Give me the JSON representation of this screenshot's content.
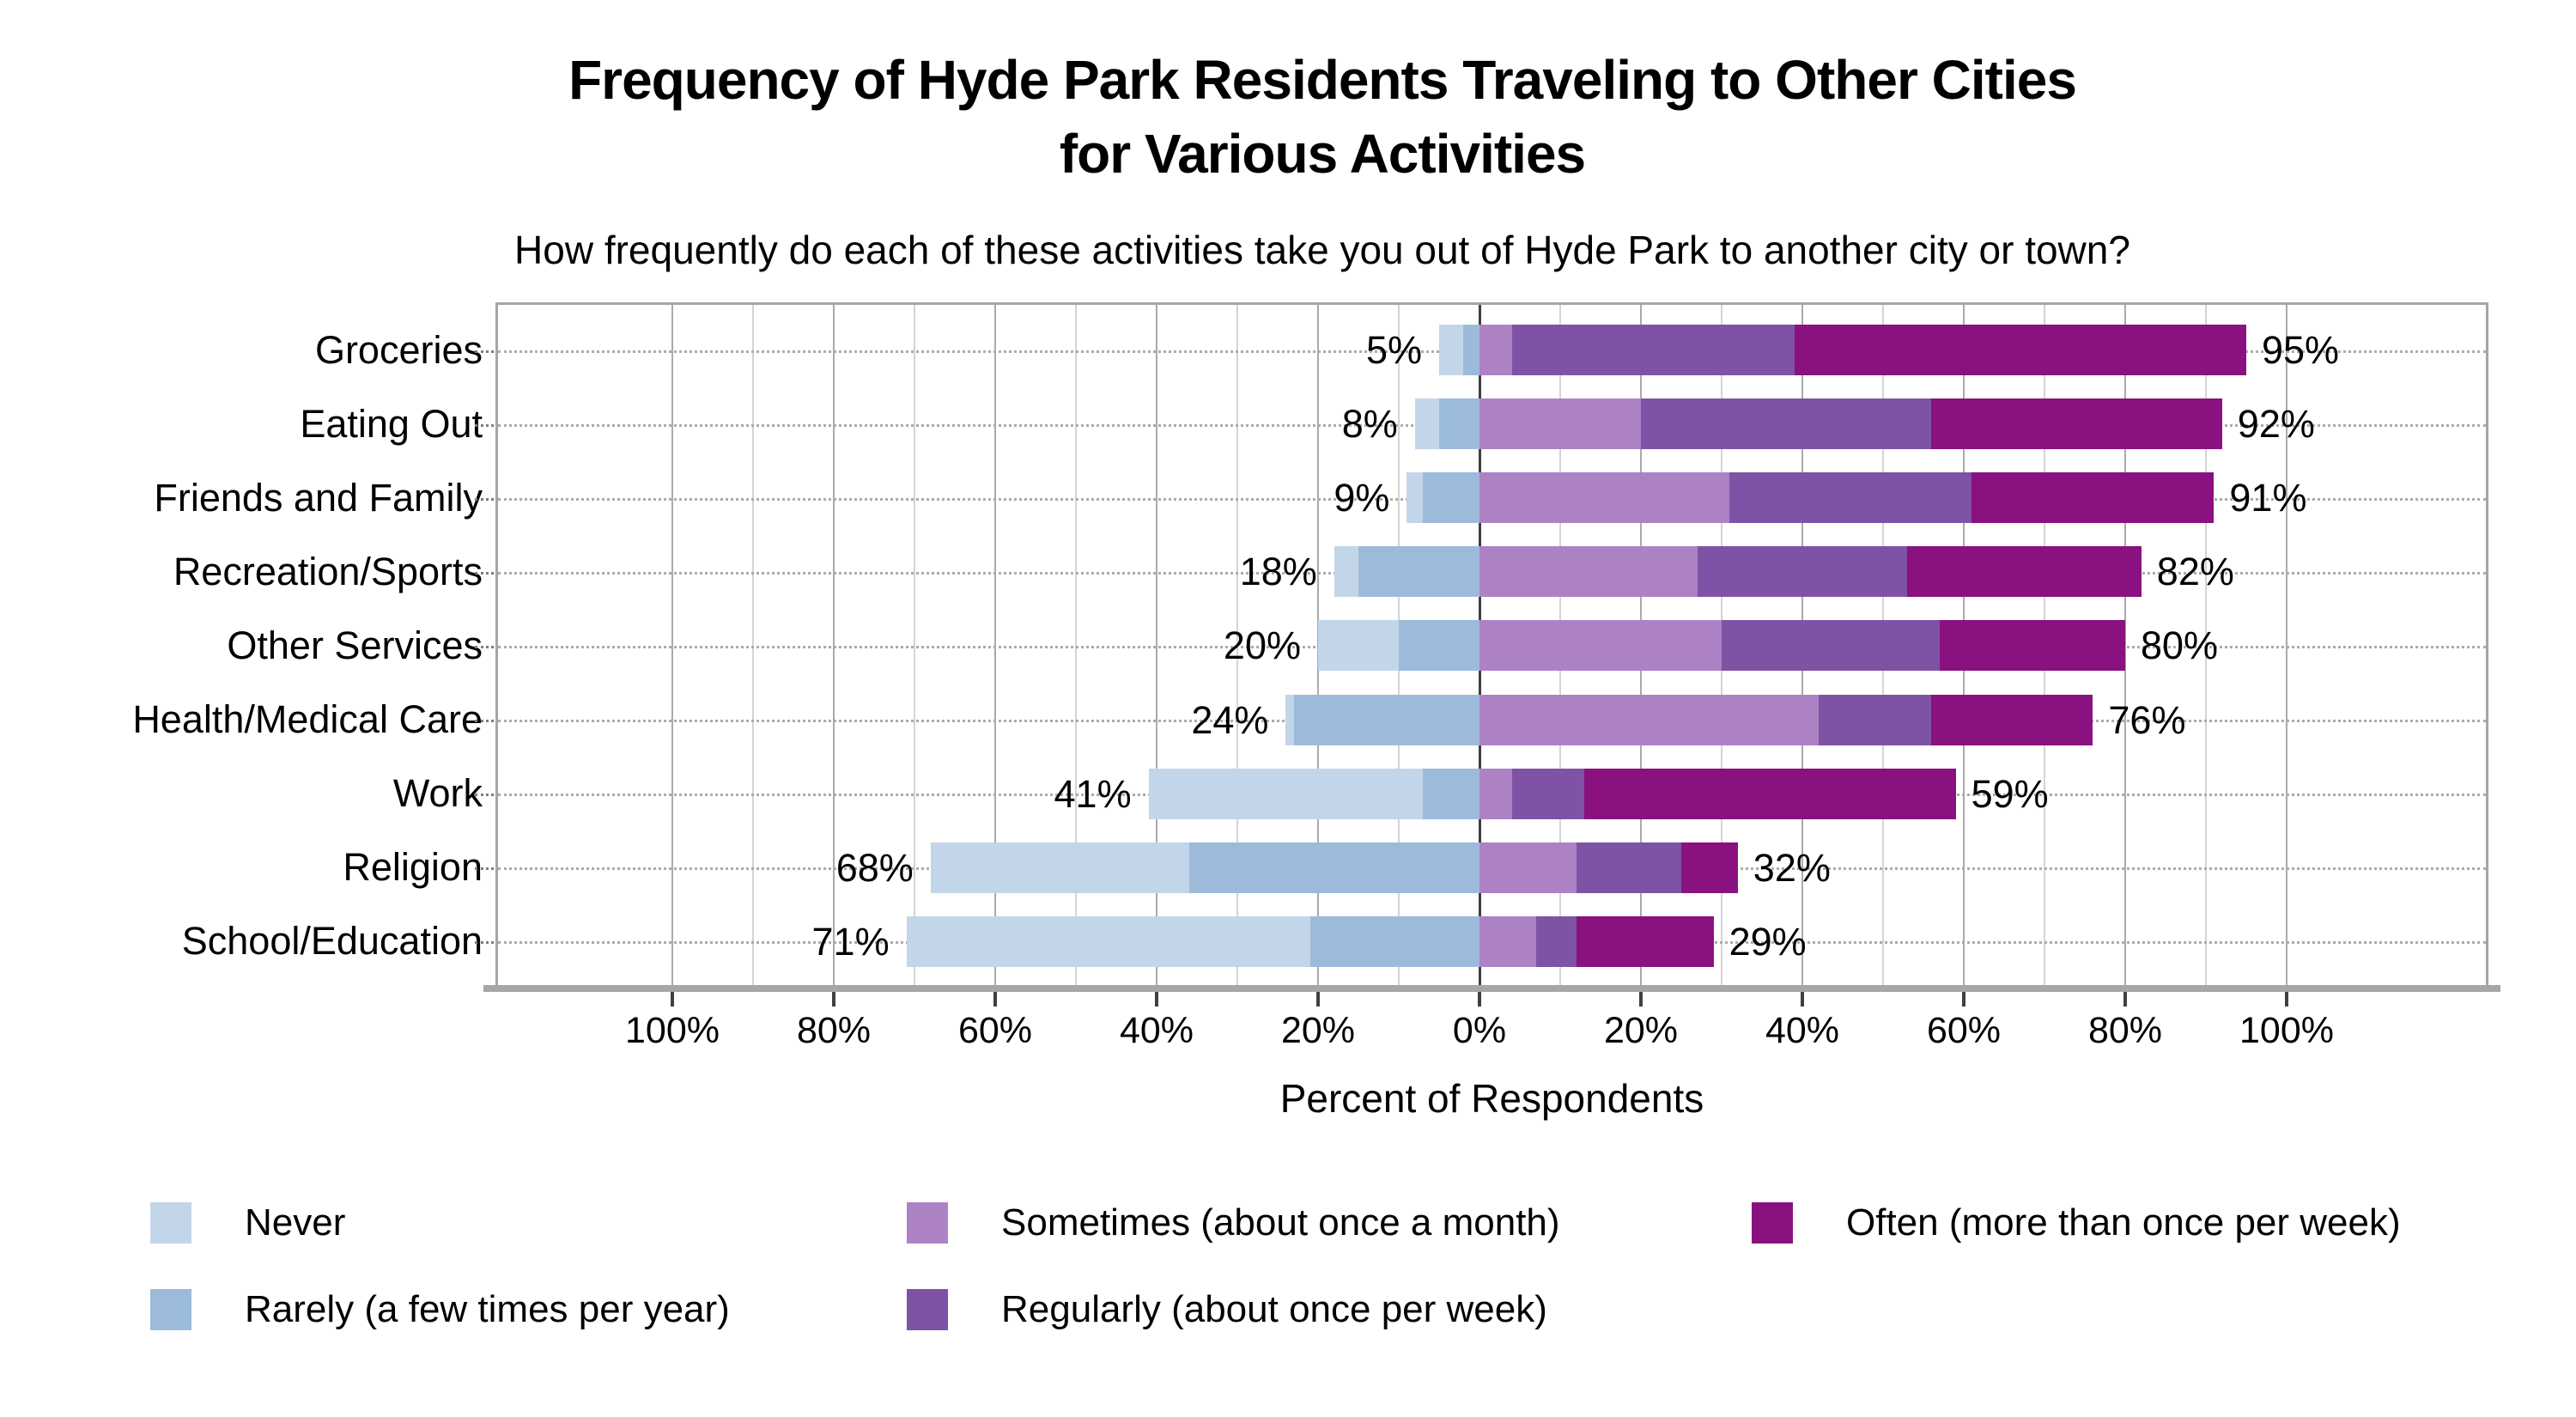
{
  "title": "Frequency of Hyde Park Residents Traveling to Other Cities\nfor Various Activities",
  "subtitle": "How frequently do each of these activities take you out of Hyde Park to another city or town?",
  "x_axis": {
    "title": "Percent of Respondents",
    "tick_labels": [
      "100%",
      "80%",
      "60%",
      "40%",
      "20%",
      "0%",
      "20%",
      "40%",
      "60%",
      "80%",
      "100%"
    ],
    "tick_values": [
      -100,
      -80,
      -60,
      -40,
      -20,
      0,
      20,
      40,
      60,
      80,
      100
    ],
    "gridline_step": 10
  },
  "colors": {
    "never": "#c3d6e9",
    "rarely": "#9cbbdb",
    "sometimes": "#ad82c5",
    "regularly": "#7e53a5",
    "often": "#8a1180",
    "grid_minor": "#d4d4d4",
    "grid_major": "#aaaaaa",
    "zero_line": "#3f3f3f",
    "axis_line": "#a6a6a6",
    "text": "#000000"
  },
  "legend": {
    "items": [
      {
        "label": "Never",
        "color": "#c3d6e9"
      },
      {
        "label": "Rarely (a few times per year)",
        "color": "#9cbbdb"
      },
      {
        "label": "Sometimes (about once a month)",
        "color": "#ad82c5"
      },
      {
        "label": "Regularly (about once per week)",
        "color": "#7e53a5"
      },
      {
        "label": "Often (more than once per week)",
        "color": "#8a1180"
      }
    ]
  },
  "chart_data": {
    "type": "bar",
    "variant": "horizontal-diverging-stacked",
    "title": "Frequency of Hyde Park Residents Traveling to Other Cities for Various Activities",
    "subtitle": "How frequently do each of these activities take you out of Hyde Park to another city or town?",
    "xlabel": "Percent of Respondents",
    "xlim": [
      -122,
      125
    ],
    "grid": true,
    "legend_position": "bottom",
    "categories": [
      "Groceries",
      "Eating Out",
      "Friends and Family",
      "Recreation/Sports",
      "Other Services",
      "Health/Medical Care",
      "Work",
      "Religion",
      "School/Education"
    ],
    "series": [
      {
        "name": "Never",
        "side": "left",
        "color": "#c3d6e9",
        "values": [
          3,
          3,
          2,
          3,
          10,
          1,
          34,
          32,
          50
        ]
      },
      {
        "name": "Rarely (a few times per year)",
        "side": "left",
        "color": "#9cbbdb",
        "values": [
          2,
          5,
          7,
          15,
          10,
          23,
          7,
          36,
          21
        ]
      },
      {
        "name": "Sometimes (about once a month)",
        "side": "right",
        "color": "#ad82c5",
        "values": [
          4,
          20,
          31,
          27,
          30,
          42,
          4,
          12,
          7
        ]
      },
      {
        "name": "Regularly (about once per week)",
        "side": "right",
        "color": "#7e53a5",
        "values": [
          35,
          36,
          30,
          26,
          27,
          14,
          9,
          13,
          5
        ]
      },
      {
        "name": "Often (more than once per week)",
        "side": "right",
        "color": "#8a1180",
        "values": [
          56,
          36,
          30,
          29,
          23,
          20,
          46,
          7,
          17
        ]
      }
    ],
    "left_total_labels": [
      "5%",
      "8%",
      "9%",
      "18%",
      "20%",
      "24%",
      "41%",
      "68%",
      "71%"
    ],
    "right_total_labels": [
      "95%",
      "92%",
      "91%",
      "82%",
      "80%",
      "76%",
      "59%",
      "32%",
      "29%"
    ]
  }
}
